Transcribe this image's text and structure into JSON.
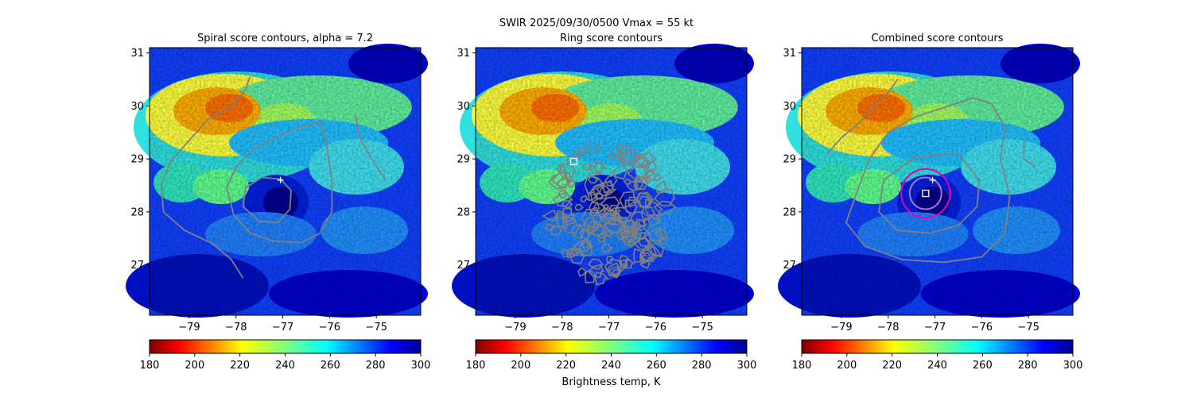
{
  "figure": {
    "suptitle": "SWIR  2025/09/30/0500    Vmax = 55 kt"
  },
  "chart_data": [
    {
      "type": "heatmap",
      "title": "Spiral score contours, alpha =  7.2",
      "xlabel": "",
      "ylabel": "",
      "x_ticks": [
        "−79",
        "−78",
        "−77",
        "−76",
        "−75"
      ],
      "x_tick_values": [
        -79,
        -78,
        -77,
        -76,
        -75
      ],
      "y_ticks": [
        "27",
        "28",
        "29",
        "30",
        "31"
      ],
      "y_tick_values": [
        27,
        28,
        29,
        30,
        31
      ],
      "xlim": [
        -79.85,
        -74.05
      ],
      "ylim": [
        26.05,
        31.1
      ],
      "colorbar": {
        "label": "",
        "ticks": [
          "180",
          "200",
          "220",
          "240",
          "260",
          "280",
          "300"
        ],
        "tick_values": [
          180,
          200,
          220,
          240,
          260,
          280,
          300
        ],
        "range": [
          180,
          300
        ],
        "colormap": "jet_r"
      },
      "markers": [
        {
          "kind": "plus",
          "lon": -77.05,
          "lat": 28.6,
          "color": "#ffffff"
        }
      ],
      "contours": [
        {
          "color": "#808080",
          "points": [
            [
              -77.7,
              30.55
            ],
            [
              -77.8,
              30.3
            ],
            [
              -78.1,
              30.0
            ],
            [
              -78.6,
              29.75
            ],
            [
              -79.05,
              29.3
            ],
            [
              -79.4,
              28.95
            ],
            [
              -79.6,
              28.5
            ],
            [
              -79.55,
              28.0
            ],
            [
              -79.1,
              27.65
            ],
            [
              -78.5,
              27.4
            ],
            [
              -78.1,
              27.1
            ],
            [
              -77.85,
              26.75
            ]
          ]
        },
        {
          "color": "#808080",
          "points": [
            [
              -76.2,
              29.7
            ],
            [
              -76.8,
              29.55
            ],
            [
              -77.6,
              29.2
            ],
            [
              -78.0,
              28.85
            ],
            [
              -78.2,
              28.45
            ],
            [
              -78.05,
              27.95
            ],
            [
              -77.7,
              27.6
            ],
            [
              -77.2,
              27.45
            ],
            [
              -76.6,
              27.42
            ],
            [
              -76.2,
              27.6
            ],
            [
              -75.95,
              28.0
            ],
            [
              -75.95,
              28.6
            ],
            [
              -76.05,
              29.2
            ],
            [
              -76.2,
              29.7
            ]
          ]
        },
        {
          "color": "#808080",
          "points": [
            [
              -77.05,
              28.62
            ],
            [
              -77.45,
              28.65
            ],
            [
              -77.8,
              28.45
            ],
            [
              -77.85,
              28.1
            ],
            [
              -77.5,
              27.82
            ],
            [
              -77.1,
              27.8
            ],
            [
              -76.85,
              28.05
            ],
            [
              -76.82,
              28.4
            ],
            [
              -77.05,
              28.62
            ]
          ]
        },
        {
          "color": "#808080",
          "points": [
            [
              -75.45,
              29.85
            ],
            [
              -75.35,
              29.4
            ],
            [
              -75.1,
              29.0
            ],
            [
              -74.8,
              28.6
            ]
          ]
        }
      ]
    },
    {
      "type": "heatmap",
      "title": "Ring score contours",
      "xlabel": "",
      "ylabel": "",
      "x_ticks": [
        "−79",
        "−78",
        "−77",
        "−76",
        "−75"
      ],
      "x_tick_values": [
        -79,
        -78,
        -77,
        -76,
        -75
      ],
      "y_ticks": [
        "27",
        "28",
        "29",
        "30",
        "31"
      ],
      "y_tick_values": [
        27,
        28,
        29,
        30,
        31
      ],
      "xlim": [
        -79.85,
        -74.05
      ],
      "ylim": [
        26.05,
        31.1
      ],
      "colorbar": {
        "label": "Brightness temp, K",
        "ticks": [
          "180",
          "200",
          "220",
          "240",
          "260",
          "280",
          "300"
        ],
        "tick_values": [
          180,
          200,
          220,
          240,
          260,
          280,
          300
        ],
        "range": [
          180,
          300
        ],
        "colormap": "jet_r"
      },
      "markers": [
        {
          "kind": "square",
          "lon": -77.75,
          "lat": 28.95,
          "color": "#ffffff"
        }
      ],
      "ring_region": {
        "center_lon": -77.0,
        "center_lat": 28.0,
        "half_width_lon": 1.4,
        "half_height_lat": 1.3
      }
    },
    {
      "type": "heatmap",
      "title": "Combined score contours",
      "xlabel": "",
      "ylabel": "",
      "x_ticks": [
        "−79",
        "−78",
        "−77",
        "−76",
        "−75"
      ],
      "x_tick_values": [
        -79,
        -78,
        -77,
        -76,
        -75
      ],
      "y_ticks": [
        "27",
        "28",
        "29",
        "30",
        "31"
      ],
      "y_tick_values": [
        27,
        28,
        29,
        30,
        31
      ],
      "xlim": [
        -79.85,
        -74.05
      ],
      "ylim": [
        26.05,
        31.1
      ],
      "colorbar": {
        "label": "",
        "ticks": [
          "180",
          "200",
          "220",
          "240",
          "260",
          "280",
          "300"
        ],
        "tick_values": [
          180,
          200,
          220,
          240,
          260,
          280,
          300
        ],
        "range": [
          180,
          300
        ],
        "colormap": "jet_r"
      },
      "markers": [
        {
          "kind": "plus",
          "lon": -77.05,
          "lat": 28.6,
          "color": "#ffffff"
        },
        {
          "kind": "square",
          "lon": -77.2,
          "lat": 28.35,
          "color": "#ffffff"
        }
      ],
      "circles": [
        {
          "lon": -77.2,
          "lat": 28.35,
          "radius_lon": 0.52,
          "color": "#e000c8"
        },
        {
          "lon": -77.2,
          "lat": 28.35,
          "radius_lon": 0.34,
          "color": "#b070d0"
        }
      ],
      "contours": [
        {
          "color": "#808080",
          "points": [
            [
              -79.3,
              29.1
            ],
            [
              -79.0,
              29.4
            ],
            [
              -78.6,
              29.7
            ],
            [
              -78.3,
              30.0
            ],
            [
              -78.0,
              30.25
            ],
            [
              -77.8,
              30.5
            ]
          ]
        },
        {
          "color": "#808080",
          "points": [
            [
              -78.4,
              29.0
            ],
            [
              -78.0,
              29.5
            ],
            [
              -77.4,
              29.8
            ],
            [
              -76.7,
              30.0
            ],
            [
              -76.2,
              30.15
            ],
            [
              -75.8,
              30.05
            ],
            [
              -75.5,
              29.6
            ],
            [
              -75.6,
              29.0
            ],
            [
              -75.4,
              28.3
            ],
            [
              -75.5,
              27.6
            ],
            [
              -76.0,
              27.15
            ],
            [
              -76.8,
              27.05
            ],
            [
              -77.7,
              27.1
            ],
            [
              -78.5,
              27.35
            ],
            [
              -78.9,
              27.8
            ],
            [
              -78.7,
              28.3
            ],
            [
              -78.4,
              29.0
            ]
          ]
        },
        {
          "color": "#808080",
          "points": [
            [
              -76.5,
              29.1
            ],
            [
              -77.4,
              29.05
            ],
            [
              -78.1,
              28.6
            ],
            [
              -78.2,
              28.0
            ],
            [
              -77.8,
              27.65
            ],
            [
              -77.1,
              27.6
            ],
            [
              -76.5,
              27.75
            ],
            [
              -76.1,
              28.1
            ],
            [
              -76.05,
              28.6
            ],
            [
              -76.5,
              29.1
            ]
          ]
        },
        {
          "color": "#808080",
          "points": [
            [
              -75.1,
              29.4
            ],
            [
              -75.1,
              29.0
            ],
            [
              -74.85,
              28.85
            ]
          ]
        }
      ]
    }
  ]
}
